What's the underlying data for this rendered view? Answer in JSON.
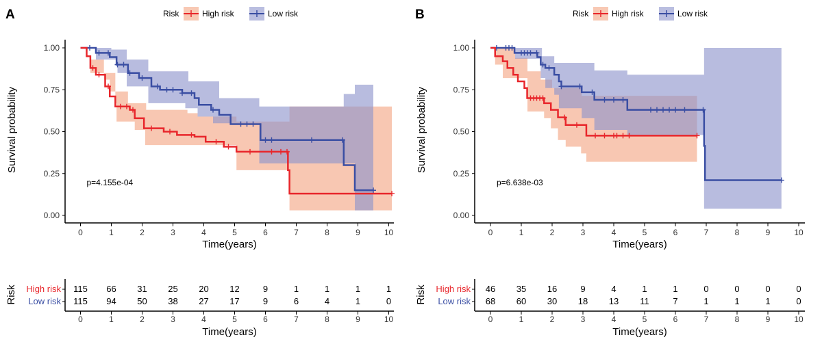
{
  "colors": {
    "high": "#e8262b",
    "low": "#3a4ea3",
    "high_ci": "#f4a582",
    "low_ci": "#8c93cc",
    "axis": "#000000"
  },
  "chart_data": [
    {
      "panel_label": "A",
      "type": "line",
      "subtype": "kaplan-meier",
      "legend": {
        "title": "Risk",
        "entries": [
          "High risk",
          "Low risk"
        ],
        "placement": "top"
      },
      "xlabel": "Time(years)",
      "ylabel": "Survival probability",
      "xlim": [
        0,
        10
      ],
      "ylim": [
        0,
        1
      ],
      "xticks": [
        "0",
        "1",
        "2",
        "3",
        "4",
        "5",
        "6",
        "7",
        "8",
        "9",
        "10"
      ],
      "yticks": [
        "0.00",
        "0.25",
        "0.50",
        "0.75",
        "1.00"
      ],
      "annotation": "p=4.155e-04",
      "series": [
        {
          "name": "High risk",
          "end": 10.1,
          "steps": [
            [
              0,
              1
            ],
            [
              0.2,
              0.95
            ],
            [
              0.32,
              0.88
            ],
            [
              0.5,
              0.84
            ],
            [
              0.8,
              0.77
            ],
            [
              0.95,
              0.71
            ],
            [
              1.13,
              0.65
            ],
            [
              1.6,
              0.63
            ],
            [
              1.76,
              0.58
            ],
            [
              2.06,
              0.52
            ],
            [
              2.7,
              0.5
            ],
            [
              3.13,
              0.48
            ],
            [
              3.7,
              0.47
            ],
            [
              4.06,
              0.44
            ],
            [
              4.65,
              0.41
            ],
            [
              5.06,
              0.38
            ],
            [
              6.73,
              0.27
            ],
            [
              6.78,
              0.13
            ]
          ],
          "upper": [
            [
              0,
              1
            ],
            [
              0.32,
              0.93
            ],
            [
              0.76,
              0.81
            ],
            [
              0.95,
              0.74
            ],
            [
              1.54,
              0.67
            ],
            [
              2.13,
              0.63
            ],
            [
              3.47,
              0.61
            ],
            [
              3.8,
              0.59
            ],
            [
              5.06,
              0.56
            ],
            [
              6.78,
              0.65
            ]
          ],
          "lower": [
            [
              0,
              1
            ],
            [
              0.32,
              0.85
            ],
            [
              1.13,
              0.67
            ],
            [
              1.17,
              0.56
            ],
            [
              1.76,
              0.51
            ],
            [
              2.1,
              0.42
            ],
            [
              5.06,
              0.27
            ],
            [
              6.78,
              0.03
            ]
          ],
          "censor": [
            0.4,
            0.6,
            0.9,
            1.3,
            1.5,
            1.7,
            2.3,
            2.9,
            3.6,
            4.4,
            4.8,
            5.5,
            6.2,
            6.5,
            6.7,
            10.1
          ]
        },
        {
          "name": "Low risk",
          "end": 9.5,
          "steps": [
            [
              0,
              1
            ],
            [
              0.5,
              0.97
            ],
            [
              0.95,
              0.945
            ],
            [
              1.17,
              0.9
            ],
            [
              1.54,
              0.85
            ],
            [
              1.9,
              0.82
            ],
            [
              2.3,
              0.77
            ],
            [
              2.58,
              0.75
            ],
            [
              3.3,
              0.73
            ],
            [
              3.7,
              0.7
            ],
            [
              3.84,
              0.66
            ],
            [
              4.24,
              0.63
            ],
            [
              4.5,
              0.6
            ],
            [
              4.87,
              0.545
            ],
            [
              5.84,
              0.45
            ],
            [
              8.54,
              0.3
            ],
            [
              8.9,
              0.15
            ]
          ],
          "upper": [
            [
              0,
              1
            ],
            [
              1,
              0.99
            ],
            [
              1.5,
              0.93
            ],
            [
              2.2,
              0.86
            ],
            [
              3.5,
              0.8
            ],
            [
              4.5,
              0.7
            ],
            [
              5.8,
              0.65
            ],
            [
              8.54,
              0.725
            ],
            [
              8.9,
              0.78
            ]
          ],
          "lower": [
            [
              0,
              1
            ],
            [
              0.5,
              0.93
            ],
            [
              1.2,
              0.85
            ],
            [
              1.5,
              0.77
            ],
            [
              2.2,
              0.67
            ],
            [
              3.4,
              0.64
            ],
            [
              3.8,
              0.59
            ],
            [
              4.3,
              0.55
            ],
            [
              5.8,
              0.31
            ],
            [
              8.9,
              0.03
            ]
          ],
          "censor": [
            0.3,
            0.6,
            0.9,
            1.2,
            1.4,
            1.6,
            2.0,
            2.5,
            2.8,
            3.0,
            3.3,
            3.6,
            4.3,
            5.2,
            5.4,
            5.6,
            6.0,
            6.2,
            7.5,
            8.5,
            9.5
          ]
        }
      ],
      "risk_table": {
        "title": "Risk",
        "xlabel": "Time(years)",
        "rows": [
          {
            "label": "High risk",
            "values": [
              "115",
              "66",
              "31",
              "25",
              "20",
              "12",
              "9",
              "1",
              "1",
              "1",
              "1"
            ]
          },
          {
            "label": "Low risk",
            "values": [
              "115",
              "94",
              "50",
              "38",
              "27",
              "17",
              "9",
              "6",
              "4",
              "1",
              "0"
            ]
          }
        ]
      }
    },
    {
      "panel_label": "B",
      "type": "line",
      "subtype": "kaplan-meier",
      "legend": {
        "title": "Risk",
        "entries": [
          "High risk",
          "Low risk"
        ],
        "placement": "top"
      },
      "xlabel": "Time(years)",
      "ylabel": "Survival probability",
      "xlim": [
        0,
        10
      ],
      "ylim": [
        0,
        1
      ],
      "xticks": [
        "0",
        "1",
        "2",
        "3",
        "4",
        "5",
        "6",
        "7",
        "8",
        "9",
        "10"
      ],
      "yticks": [
        "0.00",
        "0.25",
        "0.50",
        "0.75",
        "1.00"
      ],
      "annotation": "p=6.638e-03",
      "series": [
        {
          "name": "High risk",
          "end": 6.7,
          "steps": [
            [
              0,
              1
            ],
            [
              0.15,
              0.95
            ],
            [
              0.4,
              0.92
            ],
            [
              0.55,
              0.88
            ],
            [
              0.74,
              0.84
            ],
            [
              0.89,
              0.8
            ],
            [
              1.1,
              0.76
            ],
            [
              1.19,
              0.7
            ],
            [
              1.74,
              0.67
            ],
            [
              1.96,
              0.63
            ],
            [
              2.19,
              0.585
            ],
            [
              2.44,
              0.54
            ],
            [
              3.11,
              0.476
            ]
          ],
          "upper": [
            [
              0,
              1
            ],
            [
              0.8,
              0.94
            ],
            [
              1.2,
              0.86
            ],
            [
              1.63,
              0.81
            ],
            [
              2.0,
              0.76
            ],
            [
              2.96,
              0.714
            ]
          ],
          "lower": [
            [
              0,
              1
            ],
            [
              0.15,
              0.9
            ],
            [
              0.4,
              0.82
            ],
            [
              1.2,
              0.62
            ],
            [
              1.74,
              0.58
            ],
            [
              1.96,
              0.52
            ],
            [
              2.19,
              0.45
            ],
            [
              2.44,
              0.41
            ],
            [
              2.94,
              0.37
            ],
            [
              3.11,
              0.32
            ]
          ],
          "censor": [
            1.3,
            1.4,
            1.5,
            1.6,
            1.7,
            2.4,
            2.8,
            3.4,
            3.7,
            4.0,
            4.1,
            4.3,
            4.5,
            6.7
          ]
        },
        {
          "name": "Low risk",
          "end": 9.44,
          "steps": [
            [
              0,
              1
            ],
            [
              0.78,
              0.97
            ],
            [
              1.52,
              0.945
            ],
            [
              1.63,
              0.9
            ],
            [
              1.78,
              0.88
            ],
            [
              2.07,
              0.84
            ],
            [
              2.22,
              0.8
            ],
            [
              2.3,
              0.77
            ],
            [
              2.96,
              0.735
            ],
            [
              3.37,
              0.69
            ],
            [
              4.44,
              0.63
            ],
            [
              6.93,
              0.415
            ],
            [
              6.96,
              0.21
            ]
          ],
          "upper": [
            [
              0,
              1
            ],
            [
              1.67,
              0.95
            ],
            [
              2.07,
              0.91
            ],
            [
              3.37,
              0.865
            ],
            [
              4.44,
              0.84
            ],
            [
              6.93,
              1
            ]
          ],
          "lower": [
            [
              0,
              1
            ],
            [
              0.8,
              0.935
            ],
            [
              1.63,
              0.82
            ],
            [
              1.78,
              0.76
            ],
            [
              2.07,
              0.72
            ],
            [
              2.22,
              0.64
            ],
            [
              2.96,
              0.58
            ],
            [
              3.37,
              0.51
            ],
            [
              4.44,
              0.48
            ],
            [
              6.93,
              0.04
            ]
          ],
          "censor": [
            0.2,
            0.5,
            0.6,
            0.7,
            1.0,
            1.1,
            1.2,
            1.3,
            1.5,
            1.7,
            1.9,
            2.3,
            2.9,
            3.3,
            3.7,
            4.0,
            4.3,
            5.2,
            5.4,
            5.6,
            5.8,
            6.0,
            6.3,
            6.9,
            9.44
          ]
        }
      ],
      "risk_table": {
        "title": "Risk",
        "xlabel": "Time(years)",
        "rows": [
          {
            "label": "High risk",
            "values": [
              "46",
              "35",
              "16",
              "9",
              "4",
              "1",
              "1",
              "0",
              "0",
              "0",
              "0"
            ]
          },
          {
            "label": "Low risk",
            "values": [
              "68",
              "60",
              "30",
              "18",
              "13",
              "11",
              "7",
              "1",
              "1",
              "1",
              "0"
            ]
          }
        ]
      }
    }
  ]
}
